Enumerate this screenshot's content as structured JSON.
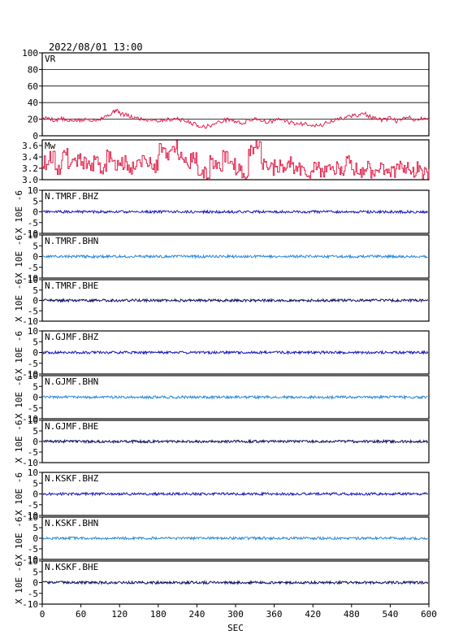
{
  "chart_data": {
    "type": "line",
    "title": "2022/08/01 13:00",
    "xlabel": "SEC",
    "xlim": [
      0,
      600
    ],
    "xticks": [
      0,
      60,
      120,
      180,
      240,
      300,
      360,
      420,
      480,
      540,
      600
    ],
    "panels": [
      {
        "label": "VR",
        "ylim": [
          0,
          100
        ],
        "yticks": [
          0,
          20,
          40,
          60,
          80,
          100
        ],
        "grid": true,
        "color": "#e0204a",
        "kind": "vr",
        "series": {
          "x": [
            0,
            10,
            20,
            30,
            40,
            50,
            60,
            70,
            80,
            90,
            100,
            110,
            115,
            120,
            130,
            140,
            150,
            160,
            170,
            180,
            190,
            200,
            210,
            220,
            230,
            240,
            250,
            260,
            270,
            280,
            290,
            300,
            310,
            320,
            330,
            340,
            350,
            360,
            370,
            380,
            390,
            400,
            410,
            420,
            430,
            440,
            450,
            460,
            470,
            480,
            490,
            500,
            510,
            520,
            530,
            540,
            550,
            560,
            570,
            580,
            590,
            600
          ],
          "y": [
            20,
            22,
            18,
            21,
            17,
            19,
            18,
            20,
            19,
            21,
            24,
            28,
            32,
            27,
            25,
            22,
            21,
            19,
            20,
            18,
            19,
            20,
            21,
            18,
            16,
            13,
            11,
            12,
            15,
            18,
            20,
            17,
            15,
            18,
            21,
            19,
            16,
            18,
            20,
            17,
            15,
            14,
            15,
            13,
            12,
            15,
            18,
            20,
            22,
            24,
            25,
            27,
            22,
            20,
            19,
            21,
            18,
            20,
            22,
            19,
            21,
            20
          ]
        }
      },
      {
        "label": "Mw",
        "ylim": [
          3.0,
          3.7
        ],
        "yticks": [
          3.0,
          3.2,
          3.4,
          3.6
        ],
        "grid": false,
        "color": "#e0204a",
        "kind": "mw",
        "series": {
          "x": [
            0,
            10,
            20,
            30,
            40,
            50,
            60,
            70,
            80,
            90,
            100,
            110,
            120,
            130,
            140,
            150,
            160,
            170,
            180,
            190,
            200,
            210,
            220,
            230,
            240,
            250,
            260,
            270,
            280,
            290,
            300,
            310,
            320,
            330,
            340,
            350,
            360,
            370,
            380,
            390,
            400,
            410,
            420,
            430,
            440,
            450,
            460,
            470,
            480,
            490,
            500,
            510,
            520,
            530,
            540,
            550,
            560,
            570,
            580,
            590,
            600
          ],
          "y": [
            3.3,
            3.4,
            3.2,
            3.45,
            3.3,
            3.35,
            3.3,
            3.25,
            3.3,
            3.2,
            3.4,
            3.25,
            3.3,
            3.2,
            3.3,
            3.35,
            3.3,
            3.25,
            3.55,
            3.45,
            3.6,
            3.4,
            3.3,
            3.4,
            3.2,
            3.1,
            3.3,
            3.25,
            3.4,
            3.3,
            3.2,
            3.1,
            3.5,
            3.65,
            3.3,
            3.2,
            3.25,
            3.15,
            3.3,
            3.2,
            3.15,
            3.1,
            3.25,
            3.15,
            3.2,
            3.2,
            3.15,
            3.3,
            3.2,
            3.15,
            3.2,
            3.15,
            3.2,
            3.2,
            3.15,
            3.25,
            3.2,
            3.15,
            3.2,
            3.1,
            3.15
          ]
        }
      },
      {
        "label": "N.TMRF.BHZ",
        "ylabel": "X 10E -6",
        "ylim": [
          -10,
          10
        ],
        "yticks": [
          -10,
          -5,
          0,
          5,
          10
        ],
        "color": "#1a1ab8",
        "kind": "trace",
        "seed": 11
      },
      {
        "label": "N.TMRF.BHN",
        "ylabel": "X 10E -6",
        "ylim": [
          -10,
          10
        ],
        "yticks": [
          -10,
          -5,
          0,
          5,
          10
        ],
        "color": "#2a8ad8",
        "kind": "trace",
        "seed": 23
      },
      {
        "label": "N.TMRF.BHE",
        "ylabel": "X 10E -6",
        "ylim": [
          -10,
          10
        ],
        "yticks": [
          -10,
          -5,
          0,
          5,
          10
        ],
        "color": "#10105e",
        "kind": "trace",
        "seed": 37
      },
      {
        "label": "N.GJMF.BHZ",
        "ylabel": "X 10E -6",
        "ylim": [
          -10,
          10
        ],
        "yticks": [
          -10,
          -5,
          0,
          5,
          10
        ],
        "color": "#1a1ab8",
        "kind": "trace",
        "seed": 41
      },
      {
        "label": "N.GJMF.BHN",
        "ylabel": "X 10E -6",
        "ylim": [
          -10,
          10
        ],
        "yticks": [
          -10,
          -5,
          0,
          5,
          10
        ],
        "color": "#2a8ad8",
        "kind": "trace",
        "seed": 53
      },
      {
        "label": "N.GJMF.BHE",
        "ylabel": "X 10E -6",
        "ylim": [
          -10,
          10
        ],
        "yticks": [
          -10,
          -5,
          0,
          5,
          10
        ],
        "color": "#10105e",
        "kind": "trace",
        "seed": 67
      },
      {
        "label": "N.KSKF.BHZ",
        "ylabel": "X 10E -6",
        "ylim": [
          -10,
          10
        ],
        "yticks": [
          -10,
          -5,
          0,
          5,
          10
        ],
        "color": "#1a1ab8",
        "kind": "trace",
        "seed": 71
      },
      {
        "label": "N.KSKF.BHN",
        "ylabel": "X 10E -6",
        "ylim": [
          -10,
          10
        ],
        "yticks": [
          -10,
          -5,
          0,
          5,
          10
        ],
        "color": "#2a8ad8",
        "kind": "trace",
        "seed": 83
      },
      {
        "label": "N.KSKF.BHE",
        "ylabel": "X 10E -6",
        "ylim": [
          -10,
          10
        ],
        "yticks": [
          -10,
          -5,
          0,
          5,
          10
        ],
        "color": "#10105e",
        "kind": "trace",
        "seed": 97
      }
    ]
  }
}
